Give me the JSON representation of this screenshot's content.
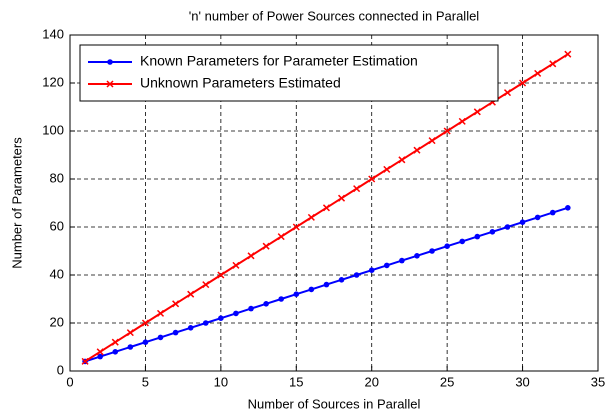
{
  "chart_data": {
    "type": "line",
    "title": "'n' number of Power Sources connected in Parallel",
    "xlabel": "Number of Sources in Parallel",
    "ylabel": "Number of Parameters",
    "x": [
      1,
      2,
      3,
      4,
      5,
      6,
      7,
      8,
      9,
      10,
      11,
      12,
      13,
      14,
      15,
      16,
      17,
      18,
      19,
      20,
      21,
      22,
      23,
      24,
      25,
      26,
      27,
      28,
      29,
      30,
      31,
      32,
      33
    ],
    "series": [
      {
        "name": "Known Parameters for Parameter Estimation",
        "color": "#0000ff",
        "marker": "dot",
        "values": [
          4,
          6,
          8,
          10,
          12,
          14,
          16,
          18,
          20,
          22,
          24,
          26,
          28,
          30,
          32,
          34,
          36,
          38,
          40,
          42,
          44,
          46,
          48,
          50,
          52,
          54,
          56,
          58,
          60,
          62,
          64,
          66,
          68
        ]
      },
      {
        "name": "Unknown Parameters Estimated",
        "color": "#ff0000",
        "marker": "x",
        "values": [
          4,
          8,
          12,
          16,
          20,
          24,
          28,
          32,
          36,
          40,
          44,
          48,
          52,
          56,
          60,
          64,
          68,
          72,
          76,
          80,
          84,
          88,
          92,
          96,
          100,
          104,
          108,
          112,
          116,
          120,
          124,
          128,
          132
        ]
      }
    ],
    "xlim": [
      0,
      35
    ],
    "xticks": [
      0,
      5,
      10,
      15,
      20,
      25,
      30,
      35
    ],
    "ylim": [
      0,
      140
    ],
    "yticks": [
      0,
      20,
      40,
      60,
      80,
      100,
      120,
      140
    ],
    "grid": true,
    "legend": "upper left"
  }
}
